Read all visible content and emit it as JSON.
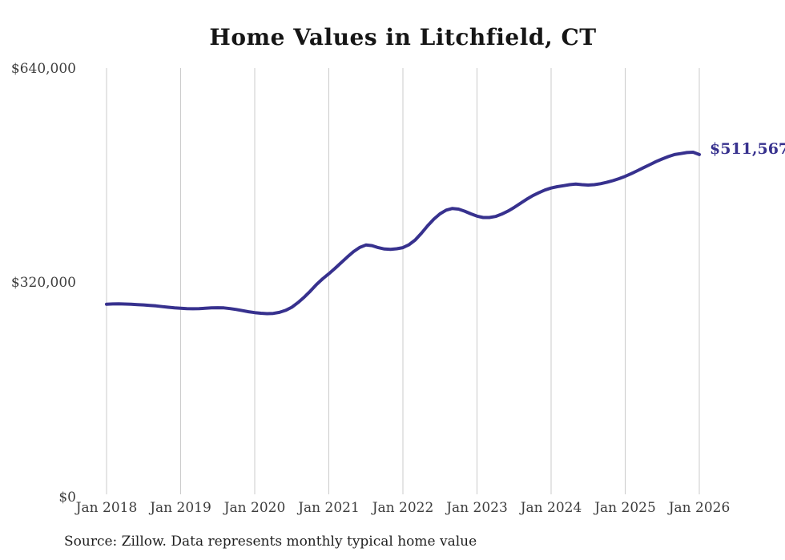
{
  "title": "Home Values in Litchfield, CT",
  "source_note": "Source: Zillow. Data represents monthly typical home value",
  "colors": {
    "line": "#37318e",
    "grid": "#cbcbcb",
    "axis_text": "#3d3d3d",
    "title_text": "#161616",
    "annotation_text": "#37318e",
    "background": "#ffffff"
  },
  "chart_data": {
    "type": "line",
    "title": "Home Values in Litchfield, CT",
    "xlabel": "",
    "ylabel": "",
    "grid": "vertical-year-gridlines-only",
    "legend": "none",
    "x_tick_labels": [
      "Jan 2018",
      "Jan 2019",
      "Jan 2020",
      "Jan 2021",
      "Jan 2022",
      "Jan 2023",
      "Jan 2024",
      "Jan 2025",
      "Jan 2026"
    ],
    "y_ticks": [
      0,
      320000,
      640000
    ],
    "y_tick_labels": [
      "$0",
      "$320,000",
      "$640,000"
    ],
    "ylim": [
      0,
      640000
    ],
    "x_start": "Jan 2018",
    "x_end": "Jan 2026",
    "frequency": "monthly",
    "last_value_label": "$511,567",
    "last_value": 511567,
    "source": "Source: Zillow. Data represents monthly typical home value",
    "series": [
      {
        "name": "Typical home value",
        "color": "#37318e",
        "values": [
          288000,
          288400,
          288500,
          288300,
          288000,
          287500,
          287000,
          286300,
          285500,
          284500,
          283500,
          282500,
          282000,
          281500,
          281300,
          281500,
          282000,
          282500,
          282800,
          282500,
          281500,
          280200,
          278500,
          276800,
          275500,
          274500,
          274000,
          274300,
          275800,
          278800,
          283500,
          290500,
          298500,
          307500,
          317500,
          326000,
          333500,
          341500,
          350000,
          358500,
          366500,
          372800,
          376500,
          375500,
          372500,
          370500,
          370000,
          370800,
          372500,
          377000,
          384000,
          394000,
          405000,
          415000,
          423000,
          428500,
          431000,
          430000,
          427000,
          423000,
          419500,
          417500,
          417500,
          419000,
          422500,
          427000,
          432500,
          438500,
          444500,
          450000,
          454500,
          458500,
          461500,
          463500,
          465000,
          466500,
          467500,
          466500,
          466000,
          466500,
          468000,
          470000,
          472500,
          475500,
          479000,
          483000,
          487500,
          492000,
          496500,
          501000,
          505000,
          508500,
          511500,
          513000,
          514500,
          515000,
          511567
        ]
      }
    ]
  }
}
